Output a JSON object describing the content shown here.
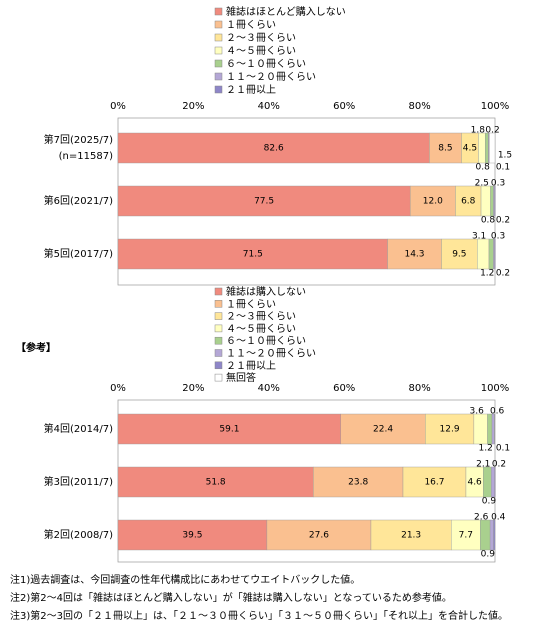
{
  "chart_data": [
    {
      "type": "stacked_bar_horizontal",
      "categories": [
        "第7回(2025/7)",
        "第6回(2021/7)",
        "第5回(2017/7)"
      ],
      "annotation": "(n=11587)",
      "xlim": [
        0,
        100
      ],
      "xticks": [
        {
          "value": 0,
          "label": "0%"
        },
        {
          "value": 20,
          "label": "20%"
        },
        {
          "value": 40,
          "label": "40%"
        },
        {
          "value": 60,
          "label": "60%"
        },
        {
          "value": 80,
          "label": "80%"
        },
        {
          "value": 100,
          "label": "100%"
        }
      ],
      "series": [
        {
          "name": "雑誌はほとんど購入しない",
          "color": "#f08a7e",
          "values": [
            82.6,
            77.5,
            71.5
          ]
        },
        {
          "name": "１冊くらい",
          "color": "#fac090",
          "values": [
            8.5,
            12.0,
            14.3
          ],
          "value_labels": [
            "8.5",
            "12.0",
            "14.3"
          ]
        },
        {
          "name": "２～３冊くらい",
          "color": "#ffe699",
          "values": [
            4.5,
            6.8,
            9.5
          ]
        },
        {
          "name": "４～５冊くらい",
          "color": "#ffffc0",
          "values": [
            1.8,
            2.5,
            3.1
          ]
        },
        {
          "name": "６～１０冊くらい",
          "color": "#a9d08e",
          "values": [
            0.8,
            0.8,
            1.2
          ]
        },
        {
          "name": "１１～２０冊くらい",
          "color": "#b4a7d6",
          "values": [
            0.2,
            0.3,
            0.3
          ]
        },
        {
          "name": "２１冊以上",
          "color": "#8e86c8",
          "values": [
            0.1,
            0.2,
            0.2
          ]
        },
        {
          "name": null,
          "color": "#ffffff",
          "values": [
            1.5,
            null,
            null
          ]
        }
      ]
    },
    {
      "type": "stacked_bar_horizontal",
      "title": "【参考】",
      "categories": [
        "第4回(2014/7)",
        "第3回(2011/7)",
        "第2回(2008/7)"
      ],
      "xlim": [
        0,
        100
      ],
      "xticks": [
        {
          "value": 0,
          "label": "0%"
        },
        {
          "value": 20,
          "label": "20%"
        },
        {
          "value": 40,
          "label": "40%"
        },
        {
          "value": 60,
          "label": "60%"
        },
        {
          "value": 80,
          "label": "80%"
        },
        {
          "value": 100,
          "label": "100%"
        }
      ],
      "series": [
        {
          "name": "雑誌は購入しない",
          "color": "#f08a7e",
          "values": [
            59.1,
            51.8,
            39.5
          ]
        },
        {
          "name": "１冊くらい",
          "color": "#fac090",
          "values": [
            22.4,
            23.8,
            27.6
          ]
        },
        {
          "name": "２～３冊くらい",
          "color": "#ffe699",
          "values": [
            12.9,
            16.7,
            21.3
          ]
        },
        {
          "name": "４～５冊くらい",
          "color": "#ffffc0",
          "values": [
            3.6,
            4.6,
            7.7
          ]
        },
        {
          "name": "６～１０冊くらい",
          "color": "#a9d08e",
          "values": [
            1.2,
            2.1,
            2.6
          ]
        },
        {
          "name": "１１～２０冊くらい",
          "color": "#b4a7d6",
          "values": [
            0.6,
            0.9,
            0.9
          ]
        },
        {
          "name": "２１冊以上",
          "color": "#8e86c8",
          "values": [
            0.1,
            0.2,
            0.4
          ]
        },
        {
          "name": "無回答",
          "color": "#ffffff",
          "values": [
            null,
            null,
            null
          ]
        }
      ]
    }
  ],
  "notes": [
    "注1)過去調査は、今回調査の性年代構成比にあわせてウエイトバックした値。",
    "注2)第2～4回は「雑誌はほとんど購入しない」が「雑誌は購入しない」となっているため参考値。",
    "注3)第2～3回の「２１冊以上」は、「２１～３０冊くらい」「３１～５０冊くらい」「それ以上」を合計した値。"
  ]
}
